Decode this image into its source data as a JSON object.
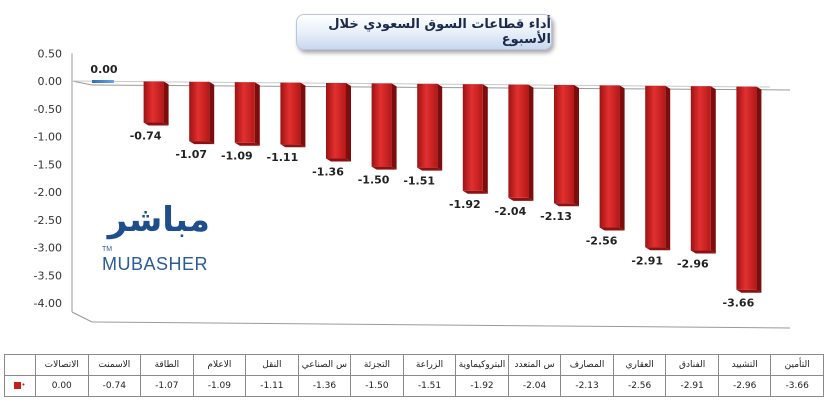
{
  "chart_data": {
    "type": "bar",
    "title": "أداء قطاعات السوق السعودي خلال الأسبوع",
    "categories": [
      "الاتصالات",
      "الاسمنت",
      "الطاقة",
      "الاعلام",
      "النقل",
      "س الصناعي",
      "التجزئة",
      "الزراعة",
      "البتروكيماوية",
      "س المتعدد",
      "المصارف",
      "العقاري",
      "الفنادق",
      "التشييد",
      "التأمين"
    ],
    "series": [
      {
        "values": [
          0.0,
          -0.74,
          -1.07,
          -1.09,
          -1.11,
          -1.36,
          -1.5,
          -1.51,
          -1.92,
          -2.04,
          -2.13,
          -2.56,
          -2.91,
          -2.96,
          -3.66
        ]
      }
    ],
    "value_labels": [
      "0.00",
      "-0.74",
      "-1.07",
      "-1.09",
      "-1.11",
      "-1.36",
      "-1.50",
      "-1.51",
      "-1.92",
      "-2.04",
      "-2.13",
      "-2.56",
      "-2.91",
      "-2.96",
      "-3.66"
    ],
    "ytick_labels": [
      "0.50",
      "0.00",
      "-0.50",
      "-1.00",
      "-1.50",
      "-2.00",
      "-2.50",
      "-3.00",
      "-3.50",
      "-4.00"
    ],
    "ylim": [
      -4.0,
      0.5
    ],
    "grid": false,
    "bar_color": "#c81e1e",
    "zero_bar_color": "#3b82c4"
  },
  "logo": {
    "arabic": "مباشر",
    "latin": "MUBASHER",
    "tm": "TM"
  }
}
